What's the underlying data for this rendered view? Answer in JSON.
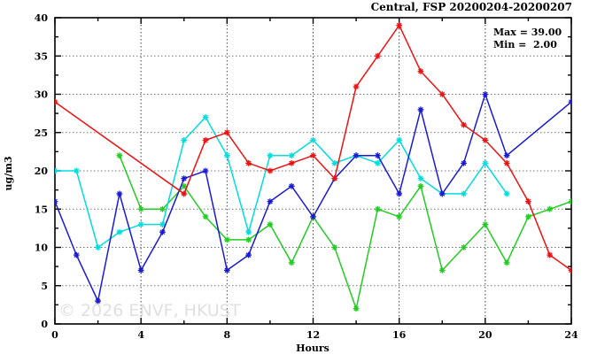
{
  "title": "Central, FSP 20200204-20200207",
  "stats": {
    "max_label": "Max = 39.00",
    "min_label": "Min =  2.00"
  },
  "watermark": "© 2026 ENVF, HKUST",
  "chart_data": {
    "type": "line",
    "title": "Central, FSP 20200204-20200207",
    "xlabel": "Hours",
    "ylabel": "ug/m3",
    "xlim": [
      0,
      24
    ],
    "ylim": [
      0,
      40
    ],
    "xticks_major": [
      0,
      4,
      8,
      12,
      16,
      20,
      24
    ],
    "xticks_minor": [
      2,
      6,
      10,
      14,
      18,
      22
    ],
    "yticks_major": [
      0,
      5,
      10,
      15,
      20,
      25,
      30,
      35,
      40
    ],
    "yticks_minor": [
      2.5,
      7.5,
      12.5,
      17.5,
      22.5,
      27.5,
      32.5,
      37.5
    ],
    "grid": true,
    "legend_position": "none",
    "max": 39.0,
    "min": 2.0,
    "x": [
      0,
      1,
      2,
      3,
      4,
      5,
      6,
      7,
      8,
      9,
      10,
      11,
      12,
      13,
      14,
      15,
      16,
      17,
      18,
      19,
      20,
      21,
      22,
      23,
      24
    ],
    "series": [
      {
        "name": "series-green",
        "color": "#22cc22",
        "values": [
          null,
          null,
          null,
          22,
          15,
          15,
          18,
          14,
          11,
          11,
          13,
          8,
          14,
          10,
          2,
          15,
          14,
          18,
          7,
          10,
          13,
          8,
          14,
          15,
          16
        ]
      },
      {
        "name": "series-cyan",
        "color": "#00dddd",
        "values": [
          20,
          20,
          10,
          12,
          13,
          13,
          24,
          27,
          22,
          12,
          22,
          22,
          24,
          21,
          22,
          21,
          24,
          19,
          17,
          17,
          21,
          17,
          null,
          null,
          null
        ]
      },
      {
        "name": "series-blue",
        "color": "#1a1ad6",
        "values": [
          16,
          9,
          3,
          17,
          7,
          12,
          19,
          20,
          7,
          9,
          16,
          18,
          14,
          19,
          22,
          22,
          17,
          28,
          17,
          21,
          30,
          22,
          null,
          null,
          29
        ]
      },
      {
        "name": "series-red",
        "color": "#ee1111",
        "values": [
          29,
          null,
          null,
          null,
          null,
          null,
          17,
          24,
          25,
          21,
          20,
          21,
          22,
          19,
          31,
          35,
          39,
          33,
          30,
          26,
          24,
          21,
          16,
          9,
          7
        ]
      }
    ]
  }
}
